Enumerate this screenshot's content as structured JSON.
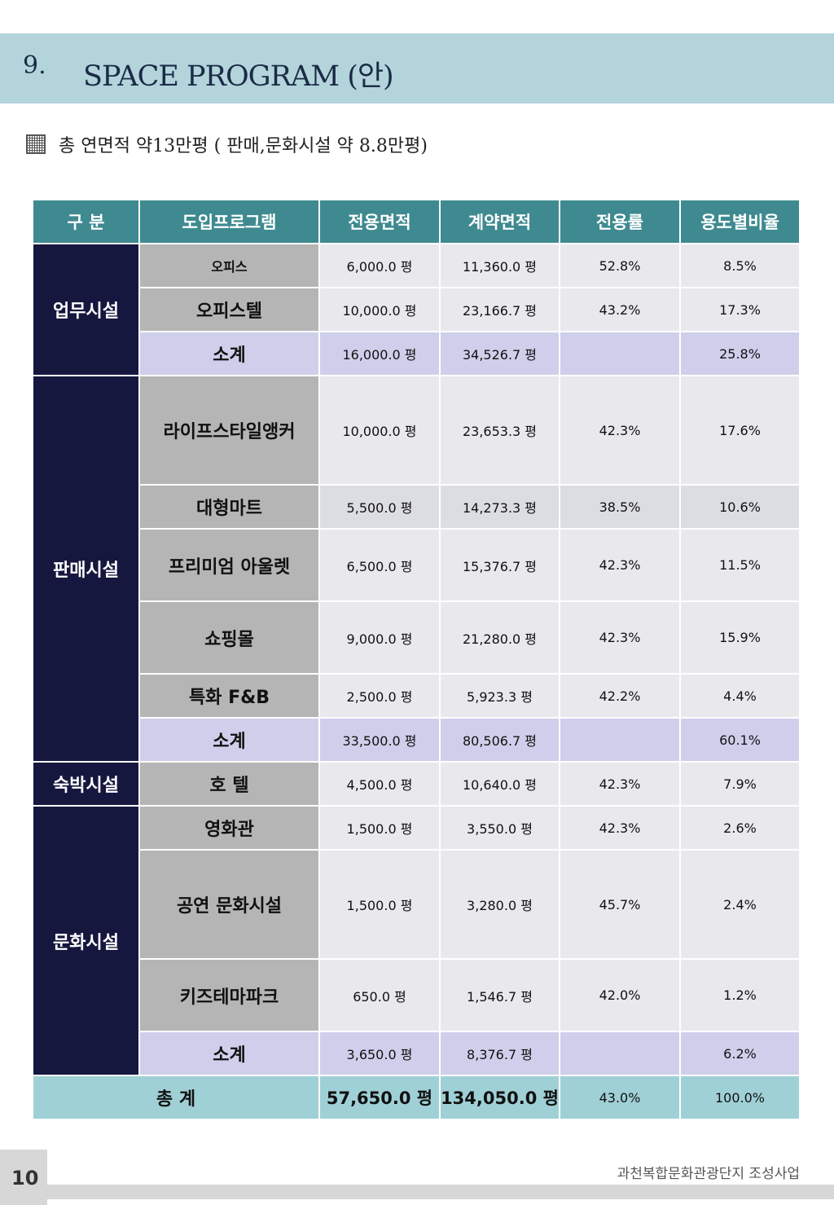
{
  "header": {
    "number": "9.",
    "title": "SPACE PROGRAM (안)"
  },
  "summary": {
    "text": "총 연면적 약13만평 ( 판매,문화시설 약 8.8만평)"
  },
  "table": {
    "headers": [
      "구 분",
      "도입프로그램",
      "전용면적",
      "계약면적",
      "전용률",
      "용도별비율"
    ],
    "groups": {
      "office": "업무시설",
      "retail": "판매시설",
      "lodging": "숙박시설",
      "culture": "문화시설"
    },
    "rows": [
      {
        "program": "오피스",
        "net": "6,000.0 평",
        "gross": "11,360.0 평",
        "ratio": "52.8%",
        "share": "8.5%"
      },
      {
        "program": "오피스텔",
        "net": "10,000.0 평",
        "gross": "23,166.7 평",
        "ratio": "43.2%",
        "share": "17.3%"
      },
      {
        "program": "소계",
        "net": "16,000.0 평",
        "gross": "34,526.7 평",
        "ratio": "",
        "share": "25.8%"
      },
      {
        "program": "라이프스타일앵커",
        "net": "10,000.0 평",
        "gross": "23,653.3 평",
        "ratio": "42.3%",
        "share": "17.6%"
      },
      {
        "program": "대형마트",
        "net": "5,500.0 평",
        "gross": "14,273.3 평",
        "ratio": "38.5%",
        "share": "10.6%"
      },
      {
        "program": "프리미엄 아울렛",
        "net": "6,500.0 평",
        "gross": "15,376.7 평",
        "ratio": "42.3%",
        "share": "11.5%"
      },
      {
        "program": "쇼핑몰",
        "net": "9,000.0 평",
        "gross": "21,280.0 평",
        "ratio": "42.3%",
        "share": "15.9%"
      },
      {
        "program": "특화 F&B",
        "net": "2,500.0 평",
        "gross": "5,923.3 평",
        "ratio": "42.2%",
        "share": "4.4%"
      },
      {
        "program": "소계",
        "net": "33,500.0 평",
        "gross": "80,506.7 평",
        "ratio": "",
        "share": "60.1%"
      },
      {
        "program": "호 텔",
        "net": "4,500.0 평",
        "gross": "10,640.0 평",
        "ratio": "42.3%",
        "share": "7.9%"
      },
      {
        "program": "영화관",
        "net": "1,500.0 평",
        "gross": "3,550.0 평",
        "ratio": "42.3%",
        "share": "2.6%"
      },
      {
        "program": "공연 문화시설",
        "net": "1,500.0 평",
        "gross": "3,280.0 평",
        "ratio": "45.7%",
        "share": "2.4%"
      },
      {
        "program": "키즈테마파크",
        "net": "650.0 평",
        "gross": "1,546.7 평",
        "ratio": "42.0%",
        "share": "1.2%"
      },
      {
        "program": "소계",
        "net": "3,650.0 평",
        "gross": "8,376.7 평",
        "ratio": "",
        "share": "6.2%"
      }
    ],
    "total": {
      "label": "총 계",
      "net": "57,650.0 평",
      "gross": "134,050.0 평",
      "ratio": "43.0%",
      "share": "100.0%"
    }
  },
  "footer": {
    "page_number": "10",
    "project": "과천복합문화관광단지 조성사업"
  },
  "colors": {
    "header_band": "#b3d4db",
    "table_header": "#3e8a90",
    "group_cell": "#16173f",
    "program_cell": "#b5b5b5",
    "subtotal": "#cfcfec",
    "total": "#9fd0d6"
  }
}
